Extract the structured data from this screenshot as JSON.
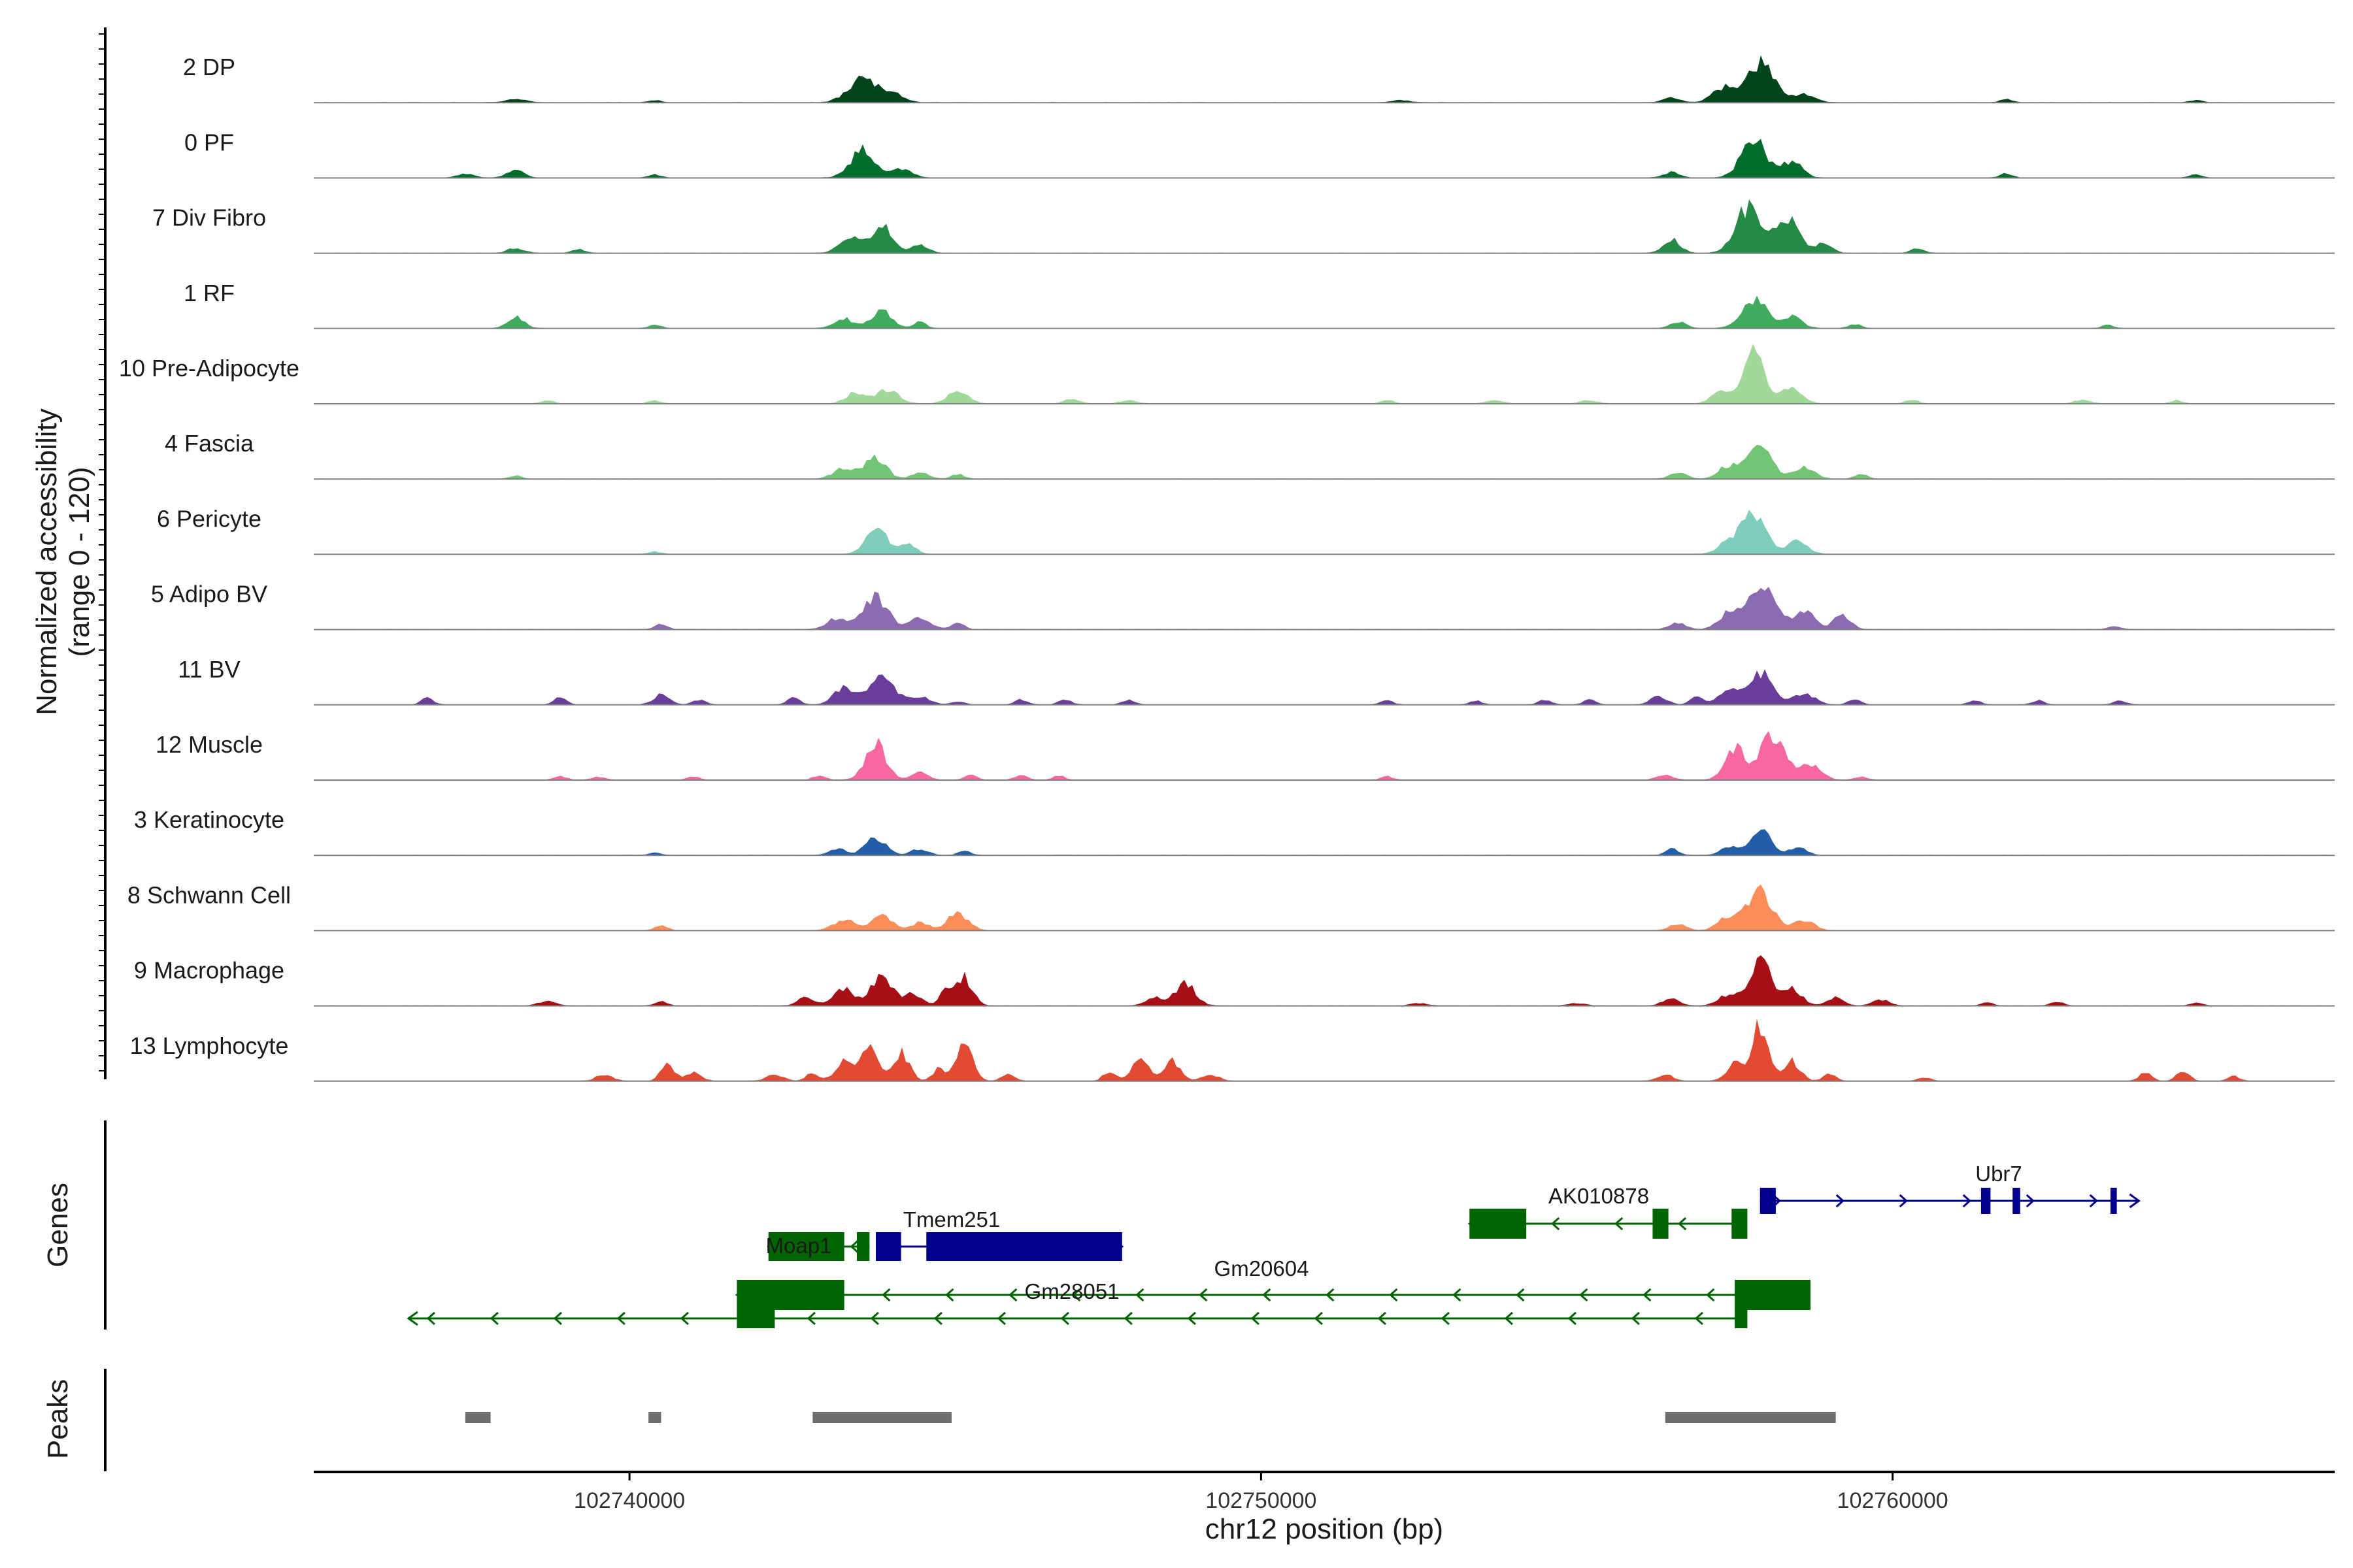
{
  "chart_data": {
    "type": "area",
    "chromosome": "chr12",
    "xlabel": "chr12 position (bp)",
    "ylabel": "Normalized accessibility",
    "ylabel_range": "(range 0 - 120)",
    "xlim": [
      102735000,
      102767000
    ],
    "ylim": [
      0,
      120
    ],
    "x_ticks": [
      "102740000",
      "102750000",
      "102760000"
    ],
    "x_tick_values": [
      102740000,
      102750000,
      102760000
    ],
    "grid": false,
    "legend": "none",
    "tracks": [
      {
        "name": "2 DP",
        "color": "#00441b",
        "peaks": [
          [
            102738200,
            4,
            500
          ],
          [
            102740400,
            3,
            300
          ],
          [
            102743700,
            30,
            700
          ],
          [
            102744200,
            10,
            500
          ],
          [
            102752200,
            3,
            400
          ],
          [
            102756500,
            6,
            400
          ],
          [
            102757300,
            18,
            500
          ],
          [
            102757900,
            50,
            700
          ],
          [
            102758600,
            10,
            500
          ],
          [
            102761800,
            4,
            300
          ],
          [
            102764800,
            3,
            300
          ]
        ]
      },
      {
        "name": "0 PF",
        "color": "#006d2c",
        "peaks": [
          [
            102737400,
            5,
            400
          ],
          [
            102738200,
            10,
            400
          ],
          [
            102740400,
            4,
            300
          ],
          [
            102743700,
            35,
            600
          ],
          [
            102744300,
            12,
            500
          ],
          [
            102756500,
            7,
            400
          ],
          [
            102757800,
            50,
            600
          ],
          [
            102758400,
            20,
            500
          ],
          [
            102761800,
            5,
            300
          ],
          [
            102764800,
            4,
            300
          ]
        ]
      },
      {
        "name": "7 Div Fibro",
        "color": "#238b45",
        "peaks": [
          [
            102738200,
            6,
            400
          ],
          [
            102739200,
            5,
            300
          ],
          [
            102743500,
            22,
            500
          ],
          [
            102744000,
            35,
            500
          ],
          [
            102744600,
            10,
            400
          ],
          [
            102756500,
            18,
            400
          ],
          [
            102757700,
            55,
            600
          ],
          [
            102758300,
            45,
            600
          ],
          [
            102758900,
            12,
            400
          ],
          [
            102760400,
            6,
            300
          ]
        ]
      },
      {
        "name": "1 RF",
        "color": "#41ab5d",
        "peaks": [
          [
            102738200,
            14,
            400
          ],
          [
            102740400,
            4,
            300
          ],
          [
            102743400,
            12,
            500
          ],
          [
            102744000,
            22,
            500
          ],
          [
            102744600,
            8,
            300
          ],
          [
            102756600,
            8,
            400
          ],
          [
            102757800,
            38,
            600
          ],
          [
            102758400,
            14,
            500
          ],
          [
            102759400,
            5,
            300
          ],
          [
            102763400,
            4,
            300
          ]
        ]
      },
      {
        "name": "10 Pre-Adipocyte",
        "color": "#a1d99b",
        "peaks": [
          [
            102738700,
            4,
            300
          ],
          [
            102740400,
            4,
            300
          ],
          [
            102743600,
            14,
            500
          ],
          [
            102744100,
            18,
            500
          ],
          [
            102745200,
            16,
            500
          ],
          [
            102747000,
            5,
            400
          ],
          [
            102747900,
            4,
            400
          ],
          [
            102752000,
            4,
            300
          ],
          [
            102753700,
            4,
            400
          ],
          [
            102755200,
            4,
            400
          ],
          [
            102757300,
            14,
            500
          ],
          [
            102757800,
            70,
            500
          ],
          [
            102758400,
            22,
            500
          ],
          [
            102760300,
            5,
            300
          ],
          [
            102763000,
            4,
            400
          ],
          [
            102764500,
            4,
            300
          ]
        ]
      },
      {
        "name": "4 Fascia",
        "color": "#74c476",
        "peaks": [
          [
            102738200,
            4,
            300
          ],
          [
            102743400,
            14,
            500
          ],
          [
            102743900,
            28,
            500
          ],
          [
            102744600,
            8,
            400
          ],
          [
            102745200,
            6,
            300
          ],
          [
            102756600,
            8,
            400
          ],
          [
            102757400,
            16,
            500
          ],
          [
            102757900,
            40,
            600
          ],
          [
            102758600,
            14,
            500
          ],
          [
            102759500,
            6,
            300
          ]
        ]
      },
      {
        "name": "6 Pericyte",
        "color": "#7fcdbb",
        "peaks": [
          [
            102740400,
            3,
            300
          ],
          [
            102743900,
            35,
            500
          ],
          [
            102744400,
            12,
            400
          ],
          [
            102757400,
            14,
            500
          ],
          [
            102757800,
            50,
            600
          ],
          [
            102758500,
            16,
            500
          ]
        ]
      },
      {
        "name": "5 Adipo BV",
        "color": "#8c6bb1",
        "peaks": [
          [
            102740500,
            6,
            300
          ],
          [
            102743300,
            14,
            500
          ],
          [
            102743900,
            40,
            600
          ],
          [
            102744600,
            14,
            500
          ],
          [
            102745200,
            10,
            300
          ],
          [
            102756600,
            8,
            400
          ],
          [
            102757400,
            18,
            500
          ],
          [
            102757900,
            55,
            700
          ],
          [
            102758600,
            22,
            500
          ],
          [
            102759200,
            18,
            400
          ],
          [
            102763500,
            4,
            300
          ]
        ]
      },
      {
        "name": "11 BV",
        "color": "#6a3d9a",
        "peaks": [
          [
            102736800,
            8,
            300
          ],
          [
            102738900,
            10,
            300
          ],
          [
            102740500,
            12,
            400
          ],
          [
            102741100,
            6,
            300
          ],
          [
            102742600,
            8,
            300
          ],
          [
            102743400,
            22,
            500
          ],
          [
            102744000,
            35,
            600
          ],
          [
            102744600,
            10,
            500
          ],
          [
            102745200,
            4,
            300
          ],
          [
            102746200,
            6,
            300
          ],
          [
            102746900,
            6,
            300
          ],
          [
            102747900,
            6,
            300
          ],
          [
            102752000,
            5,
            300
          ],
          [
            102753400,
            5,
            300
          ],
          [
            102754500,
            6,
            300
          ],
          [
            102755200,
            6,
            300
          ],
          [
            102756300,
            10,
            400
          ],
          [
            102756900,
            10,
            300
          ],
          [
            102757400,
            18,
            500
          ],
          [
            102757900,
            40,
            600
          ],
          [
            102758600,
            14,
            500
          ],
          [
            102759400,
            6,
            300
          ],
          [
            102761300,
            5,
            300
          ],
          [
            102762300,
            5,
            300
          ],
          [
            102763600,
            5,
            300
          ]
        ]
      },
      {
        "name": "12 Muscle",
        "color": "#f768a1",
        "peaks": [
          [
            102738900,
            5,
            300
          ],
          [
            102739500,
            4,
            300
          ],
          [
            102741000,
            4,
            300
          ],
          [
            102743000,
            5,
            300
          ],
          [
            102743900,
            45,
            500
          ],
          [
            102744600,
            10,
            400
          ],
          [
            102745400,
            6,
            300
          ],
          [
            102746200,
            6,
            300
          ],
          [
            102746800,
            5,
            300
          ],
          [
            102752000,
            4,
            300
          ],
          [
            102756400,
            6,
            400
          ],
          [
            102757500,
            40,
            500
          ],
          [
            102758100,
            55,
            600
          ],
          [
            102758700,
            20,
            500
          ],
          [
            102759500,
            4,
            300
          ]
        ]
      },
      {
        "name": "3 Keratinocyte",
        "color": "#225ea8",
        "peaks": [
          [
            102740400,
            3,
            300
          ],
          [
            102743300,
            8,
            400
          ],
          [
            102743900,
            22,
            500
          ],
          [
            102744600,
            8,
            400
          ],
          [
            102745300,
            5,
            300
          ],
          [
            102756500,
            8,
            300
          ],
          [
            102757400,
            10,
            400
          ],
          [
            102757900,
            35,
            500
          ],
          [
            102758500,
            10,
            400
          ]
        ]
      },
      {
        "name": "8 Schwann Cell",
        "color": "#fc8d59",
        "peaks": [
          [
            102740500,
            6,
            300
          ],
          [
            102743400,
            14,
            500
          ],
          [
            102744000,
            18,
            500
          ],
          [
            102744600,
            10,
            400
          ],
          [
            102745200,
            22,
            500
          ],
          [
            102756600,
            8,
            400
          ],
          [
            102757400,
            18,
            500
          ],
          [
            102757900,
            50,
            600
          ],
          [
            102758600,
            12,
            500
          ]
        ]
      },
      {
        "name": "9 Macrophage",
        "color": "#a50f15",
        "peaks": [
          [
            102738700,
            6,
            400
          ],
          [
            102740500,
            5,
            300
          ],
          [
            102742800,
            10,
            400
          ],
          [
            102743400,
            22,
            500
          ],
          [
            102744000,
            40,
            500
          ],
          [
            102744500,
            15,
            400
          ],
          [
            102745000,
            18,
            300
          ],
          [
            102745300,
            35,
            400
          ],
          [
            102748300,
            10,
            400
          ],
          [
            102748800,
            28,
            500
          ],
          [
            102752500,
            3,
            400
          ],
          [
            102755000,
            3,
            400
          ],
          [
            102756500,
            10,
            400
          ],
          [
            102757400,
            14,
            500
          ],
          [
            102757900,
            60,
            500
          ],
          [
            102758400,
            20,
            500
          ],
          [
            102759100,
            10,
            400
          ],
          [
            102759800,
            8,
            400
          ],
          [
            102761500,
            4,
            300
          ],
          [
            102762600,
            5,
            300
          ],
          [
            102764800,
            4,
            300
          ]
        ]
      },
      {
        "name": "13 Lymphocyte",
        "color": "#e34a33",
        "peaks": [
          [
            102739600,
            8,
            400
          ],
          [
            102740600,
            25,
            300
          ],
          [
            102741000,
            10,
            400
          ],
          [
            102742300,
            8,
            400
          ],
          [
            102742900,
            10,
            300
          ],
          [
            102743400,
            28,
            400
          ],
          [
            102743800,
            45,
            400
          ],
          [
            102744300,
            35,
            400
          ],
          [
            102744900,
            15,
            300
          ],
          [
            102745300,
            55,
            400
          ],
          [
            102746000,
            10,
            300
          ],
          [
            102747600,
            12,
            300
          ],
          [
            102748100,
            30,
            400
          ],
          [
            102748600,
            25,
            400
          ],
          [
            102749200,
            8,
            400
          ],
          [
            102756400,
            8,
            400
          ],
          [
            102757500,
            22,
            400
          ],
          [
            102757900,
            70,
            400
          ],
          [
            102758400,
            25,
            400
          ],
          [
            102759000,
            8,
            300
          ],
          [
            102760500,
            4,
            300
          ],
          [
            102764000,
            10,
            300
          ],
          [
            102764600,
            12,
            300
          ],
          [
            102765400,
            6,
            300
          ]
        ]
      }
    ],
    "genes": [
      {
        "name": "Ubr7",
        "color": "#00008b",
        "strand": "+",
        "start": 102757900,
        "end": 102763900,
        "exons": [
          [
            102757900,
            102758150
          ],
          [
            102761400,
            102761550
          ],
          [
            102761900,
            102762020
          ],
          [
            102763450,
            102763550
          ]
        ]
      },
      {
        "name": "AK010878",
        "color": "#006400",
        "strand": "-",
        "start": 102753300,
        "end": 102757700,
        "exons": [
          [
            102753300,
            102754200
          ],
          [
            102756200,
            102756450
          ],
          [
            102757450,
            102757700
          ]
        ]
      },
      {
        "name": "Moap1",
        "color": "#006400",
        "strand": "-",
        "start": 102742200,
        "end": 102743800,
        "exons": [
          [
            102742200,
            102743400
          ],
          [
            102743600,
            102743800
          ]
        ]
      },
      {
        "name": "Tmem251",
        "color": "#00008b",
        "strand": "+",
        "start": 102743900,
        "end": 102747800,
        "exons": [
          [
            102743900,
            102744300
          ],
          [
            102744700,
            102747800
          ]
        ]
      },
      {
        "name": "Gm20604",
        "color": "#006400",
        "strand": "-",
        "start": 102741700,
        "end": 102758700,
        "exons": [
          [
            102741700,
            102743400
          ],
          [
            102757500,
            102758700
          ]
        ]
      },
      {
        "name": "Gm28051",
        "color": "#006400",
        "strand": "-",
        "start": 102736500,
        "end": 102757700,
        "exons": [
          [
            102741700,
            102742300
          ],
          [
            102757500,
            102757700
          ]
        ]
      }
    ],
    "peaks": [
      [
        102737400,
        102737800
      ],
      [
        102740300,
        102740500
      ],
      [
        102742900,
        102745100
      ],
      [
        102756400,
        102759100
      ]
    ],
    "panels": {
      "genes": "Genes",
      "peaks": "Peaks"
    }
  }
}
